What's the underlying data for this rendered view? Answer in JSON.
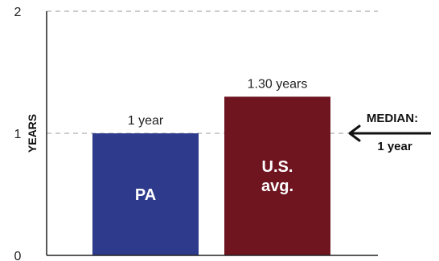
{
  "chart_data": {
    "type": "bar",
    "categories": [
      "PA",
      "U.S. avg."
    ],
    "category_lines": [
      [
        "PA"
      ],
      [
        "U.S.",
        "avg."
      ]
    ],
    "values": [
      1,
      1.3
    ],
    "data_labels": [
      "1 year",
      "1.30 years"
    ],
    "bar_colors": [
      "#2e3a8c",
      "#6e1520"
    ],
    "ylabel": "YEARS",
    "ylim": [
      0,
      2
    ],
    "yticks": [
      0,
      1,
      2
    ],
    "grid": "dashed at 1 and 2",
    "gridline_color": "#bbbbbb",
    "annotation": {
      "line1": "MEDIAN:",
      "line2": "1 year",
      "arrow": "left-arrow-icon",
      "value": 1
    }
  }
}
